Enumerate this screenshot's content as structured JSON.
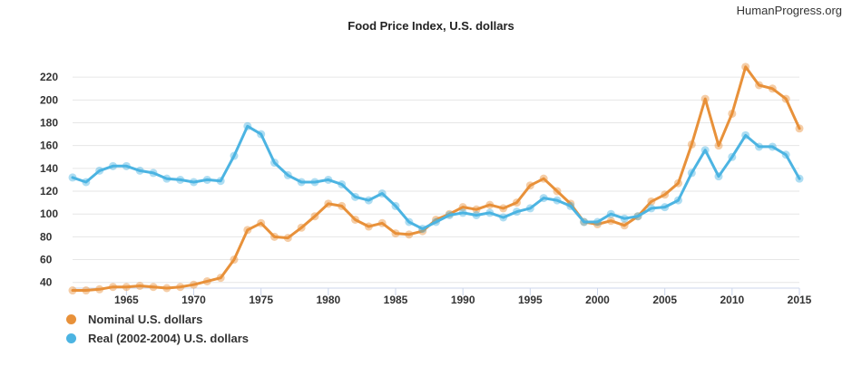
{
  "watermark": "HumanProgress.org",
  "colors": {
    "nominal": "#e8913a",
    "real": "#4cb4e2",
    "grid": "#e6e6e6",
    "axis": "#ccd6eb",
    "text": "#333333"
  },
  "chart_data": {
    "type": "line",
    "title": "Food Price Index, U.S. dollars",
    "xlabel": "",
    "ylabel": "",
    "xlim": [
      1961,
      2015
    ],
    "ylim": [
      35,
      240
    ],
    "y_ticks": [
      40,
      60,
      80,
      100,
      120,
      140,
      160,
      180,
      200,
      220
    ],
    "x_ticks": [
      1965,
      1970,
      1975,
      1980,
      1985,
      1990,
      1995,
      2000,
      2005,
      2010,
      2015
    ],
    "grid": true,
    "legend_position": "bottom-left",
    "x": [
      1961,
      1962,
      1963,
      1964,
      1965,
      1966,
      1967,
      1968,
      1969,
      1970,
      1971,
      1972,
      1973,
      1974,
      1975,
      1976,
      1977,
      1978,
      1979,
      1980,
      1981,
      1982,
      1983,
      1984,
      1985,
      1986,
      1987,
      1988,
      1989,
      1990,
      1991,
      1992,
      1993,
      1994,
      1995,
      1996,
      1997,
      1998,
      1999,
      2000,
      2001,
      2002,
      2003,
      2004,
      2005,
      2006,
      2007,
      2008,
      2009,
      2010,
      2011,
      2012,
      2013,
      2014,
      2015
    ],
    "series": [
      {
        "name": "Nominal U.S. dollars",
        "color": "#e8913a",
        "values": [
          33,
          33,
          34,
          36,
          36,
          37,
          36,
          35,
          36,
          38,
          41,
          44,
          60,
          86,
          92,
          80,
          79,
          88,
          98,
          109,
          107,
          95,
          89,
          92,
          83,
          82,
          85,
          95,
          100,
          106,
          104,
          108,
          105,
          110,
          125,
          131,
          120,
          109,
          93,
          91,
          94,
          90,
          98,
          111,
          117,
          127,
          161,
          201,
          160,
          188,
          229,
          213,
          210,
          201,
          175
        ]
      },
      {
        "name": "Real (2002-2004) U.S. dollars",
        "color": "#4cb4e2",
        "values": [
          132,
          128,
          138,
          142,
          142,
          138,
          136,
          131,
          130,
          128,
          130,
          129,
          151,
          177,
          170,
          145,
          134,
          128,
          128,
          130,
          126,
          115,
          112,
          118,
          107,
          93,
          87,
          93,
          99,
          101,
          99,
          101,
          97,
          102,
          105,
          114,
          112,
          107,
          93,
          93,
          100,
          96,
          98,
          105,
          106,
          112,
          136,
          156,
          133,
          150,
          169,
          159,
          159,
          152,
          131
        ]
      }
    ]
  }
}
